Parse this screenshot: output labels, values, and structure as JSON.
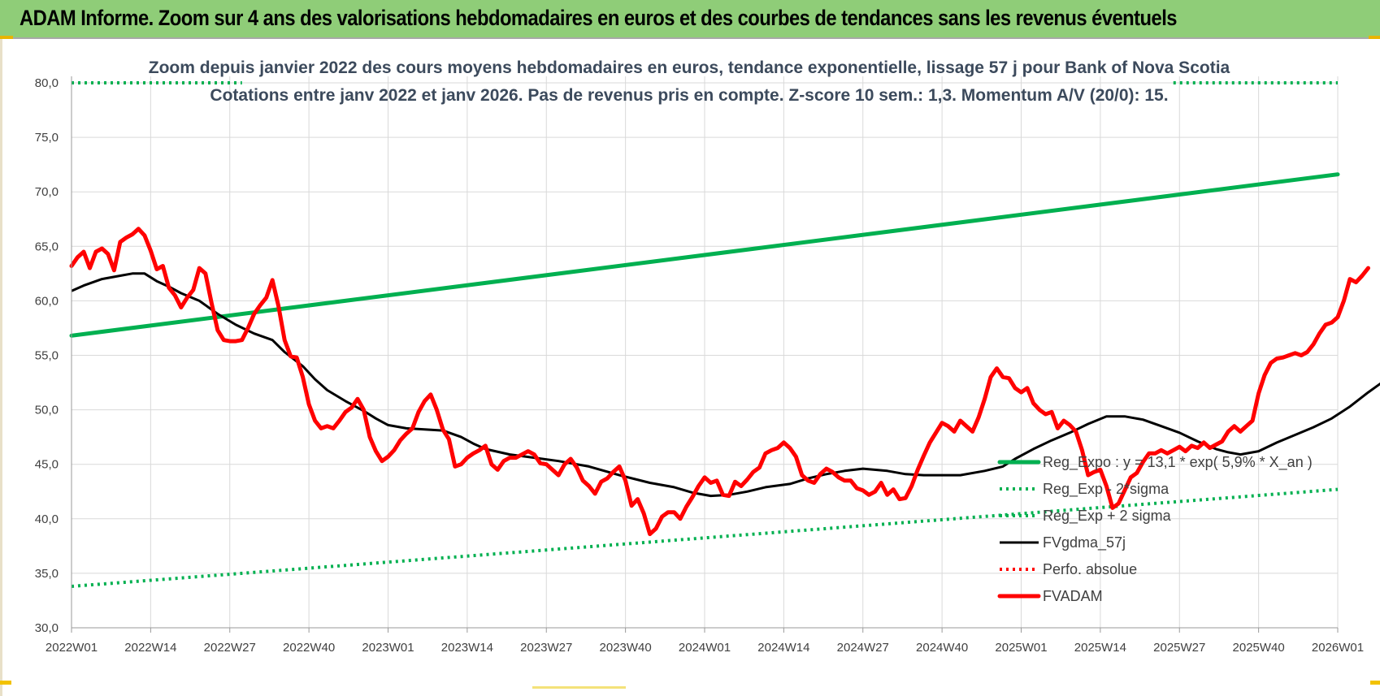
{
  "banner": {
    "title": "ADAM Informe. Zoom sur 4 ans des valorisations hebdomadaires en euros et des courbes de tendances sans les revenus éventuels"
  },
  "colors": {
    "banner_bg": "#8fcd78",
    "regression": "#00b050",
    "price": "#ff0000",
    "moving_average": "#000000"
  },
  "chart_data": {
    "type": "line",
    "title_line1": "Zoom depuis janvier 2022 des cours moyens hebdomadaires en euros, tendance exponentielle, lissage 57 j pour Bank of Nova Scotia",
    "title_line2": "Cotations entre janv 2022 et janv 2026. Pas de revenus pris en compte. Z-score 10 sem.: 1,3. Momentum A/V (20/0): 15.",
    "x_tick_labels": [
      "2022W01",
      "2022W14",
      "2022W27",
      "2022W40",
      "2023W01",
      "2023W14",
      "2023W27",
      "2023W40",
      "2024W01",
      "2024W14",
      "2024W27",
      "2024W40",
      "2025W01",
      "2025W14",
      "2025W27",
      "2025W40",
      "2026W01"
    ],
    "x_range_weeks": [
      0,
      208
    ],
    "y_tick_labels": [
      "30,0",
      "35,0",
      "40,0",
      "45,0",
      "50,0",
      "55,0",
      "60,0",
      "65,0",
      "70,0",
      "75,0",
      "80,0"
    ],
    "ylim": [
      30,
      80
    ],
    "grid": true,
    "legend_position": "bottom-right",
    "series": [
      {
        "name": "Reg_Expo : y = 13,1 * exp( 5,9% * X_an )",
        "style": "solid-thick",
        "color": "#00b050",
        "points": [
          [
            0,
            56.8
          ],
          [
            208,
            71.6
          ]
        ]
      },
      {
        "name": "Reg_Exp - 2*sigma",
        "style": "dotted",
        "color": "#00b050",
        "points": [
          [
            0,
            33.8
          ],
          [
            208,
            42.7
          ]
        ]
      },
      {
        "name": "Reg_Exp + 2 sigma",
        "style": "dotted",
        "color": "#00b050",
        "points": [
          [
            0,
            80.0
          ],
          [
            208,
            80.0
          ]
        ]
      },
      {
        "name": "FVgdma_57j",
        "style": "solid",
        "color": "#000000",
        "points": [
          [
            0,
            60.9
          ],
          [
            2,
            61.4
          ],
          [
            5,
            62.0
          ],
          [
            8,
            62.3
          ],
          [
            10,
            62.5
          ],
          [
            12,
            62.5
          ],
          [
            14,
            61.8
          ],
          [
            16,
            61.3
          ],
          [
            18,
            60.7
          ],
          [
            21,
            60.0
          ],
          [
            24,
            58.8
          ],
          [
            27,
            57.8
          ],
          [
            30,
            57.0
          ],
          [
            33,
            56.4
          ],
          [
            35,
            55.3
          ],
          [
            38,
            54.0
          ],
          [
            40,
            52.8
          ],
          [
            42,
            51.8
          ],
          [
            45,
            50.8
          ],
          [
            48,
            49.9
          ],
          [
            50,
            49.2
          ],
          [
            52,
            48.6
          ],
          [
            55,
            48.3
          ],
          [
            58,
            48.2
          ],
          [
            61,
            48.1
          ],
          [
            64,
            47.5
          ],
          [
            66,
            46.9
          ],
          [
            68,
            46.4
          ],
          [
            72,
            45.9
          ],
          [
            76,
            45.6
          ],
          [
            80,
            45.3
          ],
          [
            85,
            44.8
          ],
          [
            90,
            44.0
          ],
          [
            95,
            43.3
          ],
          [
            99,
            42.9
          ],
          [
            102,
            42.4
          ],
          [
            105,
            42.1
          ],
          [
            108,
            42.2
          ],
          [
            111,
            42.5
          ],
          [
            114,
            42.9
          ],
          [
            118,
            43.2
          ],
          [
            121,
            43.7
          ],
          [
            124,
            44.1
          ],
          [
            127,
            44.4
          ],
          [
            130,
            44.6
          ],
          [
            134,
            44.4
          ],
          [
            137,
            44.1
          ],
          [
            140,
            44.0
          ],
          [
            144,
            44.0
          ],
          [
            146,
            44.0
          ],
          [
            150,
            44.4
          ],
          [
            153,
            44.8
          ],
          [
            155,
            45.5
          ],
          [
            158,
            46.4
          ],
          [
            161,
            47.2
          ],
          [
            164,
            47.9
          ],
          [
            167,
            48.7
          ],
          [
            170,
            49.4
          ],
          [
            173,
            49.4
          ],
          [
            176,
            49.1
          ],
          [
            179,
            48.5
          ],
          [
            182,
            47.9
          ],
          [
            185,
            47.1
          ],
          [
            188,
            46.4
          ],
          [
            190,
            46.1
          ],
          [
            192,
            45.9
          ],
          [
            195,
            46.2
          ],
          [
            198,
            47.0
          ],
          [
            201,
            47.7
          ],
          [
            204,
            48.4
          ],
          [
            207,
            49.2
          ],
          [
            210,
            50.3
          ],
          [
            213,
            51.6
          ],
          [
            216,
            52.8
          ],
          [
            219,
            54.2
          ],
          [
            222,
            55.3
          ],
          [
            225,
            56.5
          ],
          [
            228,
            57.8
          ],
          [
            231,
            59.0
          ],
          [
            234,
            60.0
          ],
          [
            236,
            60.6
          ]
        ]
      },
      {
        "name": "Perfo. absolue",
        "style": "dotted",
        "color": "#ff0000",
        "points": []
      },
      {
        "name": "FVADAM",
        "style": "solid-thick",
        "color": "#ff0000",
        "points": [
          [
            0,
            63.2
          ],
          [
            1,
            64.0
          ],
          [
            2,
            64.5
          ],
          [
            3,
            63.0
          ],
          [
            4,
            64.5
          ],
          [
            5,
            64.8
          ],
          [
            6,
            64.3
          ],
          [
            7,
            62.8
          ],
          [
            8,
            65.4
          ],
          [
            9,
            65.8
          ],
          [
            10,
            66.1
          ],
          [
            11,
            66.6
          ],
          [
            12,
            66.0
          ],
          [
            13,
            64.6
          ],
          [
            14,
            62.9
          ],
          [
            15,
            63.2
          ],
          [
            16,
            61.2
          ],
          [
            17,
            60.5
          ],
          [
            18,
            59.4
          ],
          [
            19,
            60.3
          ],
          [
            20,
            61.0
          ],
          [
            21,
            63.0
          ],
          [
            22,
            62.5
          ],
          [
            23,
            59.8
          ],
          [
            24,
            57.3
          ],
          [
            25,
            56.4
          ],
          [
            26,
            56.3
          ],
          [
            27,
            56.3
          ],
          [
            28,
            56.4
          ],
          [
            29,
            57.5
          ],
          [
            30,
            58.8
          ],
          [
            31,
            59.6
          ],
          [
            32,
            60.3
          ],
          [
            33,
            61.9
          ],
          [
            34,
            59.5
          ],
          [
            35,
            56.4
          ],
          [
            36,
            54.9
          ],
          [
            37,
            54.8
          ],
          [
            38,
            53.0
          ],
          [
            39,
            50.5
          ],
          [
            40,
            49.0
          ],
          [
            41,
            48.3
          ],
          [
            42,
            48.5
          ],
          [
            43,
            48.3
          ],
          [
            44,
            49.0
          ],
          [
            45,
            49.8
          ],
          [
            46,
            50.2
          ],
          [
            47,
            51.0
          ],
          [
            48,
            50.0
          ],
          [
            49,
            47.5
          ],
          [
            50,
            46.2
          ],
          [
            51,
            45.3
          ],
          [
            52,
            45.7
          ],
          [
            53,
            46.3
          ],
          [
            54,
            47.2
          ],
          [
            55,
            47.8
          ],
          [
            56,
            48.3
          ],
          [
            57,
            49.8
          ],
          [
            58,
            50.8
          ],
          [
            59,
            51.4
          ],
          [
            60,
            50.0
          ],
          [
            61,
            48.2
          ],
          [
            62,
            47.3
          ],
          [
            63,
            44.8
          ],
          [
            64,
            45.0
          ],
          [
            65,
            45.6
          ],
          [
            66,
            46.0
          ],
          [
            67,
            46.3
          ],
          [
            68,
            46.7
          ],
          [
            69,
            45.0
          ],
          [
            70,
            44.5
          ],
          [
            71,
            45.3
          ],
          [
            72,
            45.6
          ],
          [
            73,
            45.6
          ],
          [
            74,
            45.9
          ],
          [
            75,
            46.2
          ],
          [
            76,
            45.9
          ],
          [
            77,
            45.1
          ],
          [
            78,
            45.0
          ],
          [
            79,
            44.5
          ],
          [
            80,
            44.0
          ],
          [
            81,
            45.0
          ],
          [
            82,
            45.5
          ],
          [
            83,
            44.7
          ],
          [
            84,
            43.5
          ],
          [
            85,
            43.0
          ],
          [
            86,
            42.3
          ],
          [
            87,
            43.4
          ],
          [
            88,
            43.7
          ],
          [
            89,
            44.3
          ],
          [
            90,
            44.8
          ],
          [
            91,
            43.5
          ],
          [
            92,
            41.2
          ],
          [
            93,
            41.8
          ],
          [
            94,
            40.5
          ],
          [
            95,
            38.6
          ],
          [
            96,
            39.1
          ],
          [
            97,
            40.2
          ],
          [
            98,
            40.6
          ],
          [
            99,
            40.6
          ],
          [
            100,
            40.0
          ],
          [
            101,
            41.1
          ],
          [
            102,
            42.0
          ],
          [
            103,
            43.0
          ],
          [
            104,
            43.8
          ],
          [
            105,
            43.3
          ],
          [
            106,
            43.5
          ],
          [
            107,
            42.2
          ],
          [
            108,
            42.1
          ],
          [
            109,
            43.4
          ],
          [
            110,
            43.0
          ],
          [
            111,
            43.6
          ],
          [
            112,
            44.3
          ],
          [
            113,
            44.7
          ],
          [
            114,
            46.0
          ],
          [
            115,
            46.3
          ],
          [
            116,
            46.5
          ],
          [
            117,
            47.0
          ],
          [
            118,
            46.5
          ],
          [
            119,
            45.7
          ],
          [
            120,
            44.0
          ],
          [
            121,
            43.5
          ],
          [
            122,
            43.3
          ],
          [
            123,
            44.1
          ],
          [
            124,
            44.6
          ],
          [
            125,
            44.3
          ],
          [
            126,
            43.8
          ],
          [
            127,
            43.5
          ],
          [
            128,
            43.5
          ],
          [
            129,
            42.8
          ],
          [
            130,
            42.6
          ],
          [
            131,
            42.2
          ],
          [
            132,
            42.5
          ],
          [
            133,
            43.3
          ],
          [
            134,
            42.2
          ],
          [
            135,
            42.7
          ],
          [
            136,
            41.8
          ],
          [
            137,
            41.9
          ],
          [
            138,
            43.0
          ],
          [
            139,
            44.5
          ],
          [
            140,
            45.8
          ],
          [
            141,
            47.0
          ],
          [
            142,
            47.9
          ],
          [
            143,
            48.8
          ],
          [
            144,
            48.5
          ],
          [
            145,
            48.0
          ],
          [
            146,
            49.0
          ],
          [
            147,
            48.5
          ],
          [
            148,
            48.0
          ],
          [
            149,
            49.3
          ],
          [
            150,
            51.0
          ],
          [
            151,
            53.0
          ],
          [
            152,
            53.8
          ],
          [
            153,
            53.0
          ],
          [
            154,
            52.9
          ],
          [
            155,
            52.0
          ],
          [
            156,
            51.6
          ],
          [
            157,
            52.0
          ],
          [
            158,
            50.6
          ],
          [
            159,
            50.0
          ],
          [
            160,
            49.6
          ],
          [
            161,
            49.8
          ],
          [
            162,
            48.3
          ],
          [
            163,
            49.0
          ],
          [
            164,
            48.6
          ],
          [
            165,
            48.0
          ],
          [
            166,
            46.3
          ],
          [
            167,
            44.0
          ],
          [
            168,
            44.3
          ],
          [
            169,
            44.5
          ],
          [
            170,
            43.0
          ],
          [
            171,
            41.0
          ],
          [
            172,
            41.4
          ],
          [
            173,
            42.6
          ],
          [
            174,
            43.8
          ],
          [
            175,
            44.2
          ],
          [
            176,
            45.2
          ],
          [
            177,
            46.0
          ],
          [
            178,
            46.0
          ],
          [
            179,
            46.3
          ],
          [
            180,
            46.0
          ],
          [
            181,
            46.3
          ],
          [
            182,
            46.6
          ],
          [
            183,
            46.2
          ],
          [
            184,
            46.7
          ],
          [
            185,
            46.5
          ],
          [
            186,
            47.0
          ],
          [
            187,
            46.5
          ],
          [
            188,
            46.8
          ],
          [
            189,
            47.1
          ],
          [
            190,
            48.0
          ],
          [
            191,
            48.5
          ],
          [
            192,
            48.0
          ],
          [
            193,
            48.5
          ],
          [
            194,
            49.0
          ],
          [
            195,
            51.5
          ],
          [
            196,
            53.2
          ],
          [
            197,
            54.3
          ],
          [
            198,
            54.7
          ],
          [
            199,
            54.8
          ],
          [
            200,
            55.0
          ],
          [
            201,
            55.2
          ],
          [
            202,
            55.0
          ],
          [
            203,
            55.3
          ],
          [
            204,
            56.0
          ],
          [
            205,
            57.0
          ],
          [
            206,
            57.8
          ],
          [
            207,
            58.0
          ],
          [
            208,
            58.5
          ],
          [
            209,
            60.0
          ],
          [
            210,
            62.0
          ],
          [
            211,
            61.7
          ],
          [
            212,
            62.3
          ],
          [
            213,
            63.0
          ]
        ]
      }
    ]
  }
}
